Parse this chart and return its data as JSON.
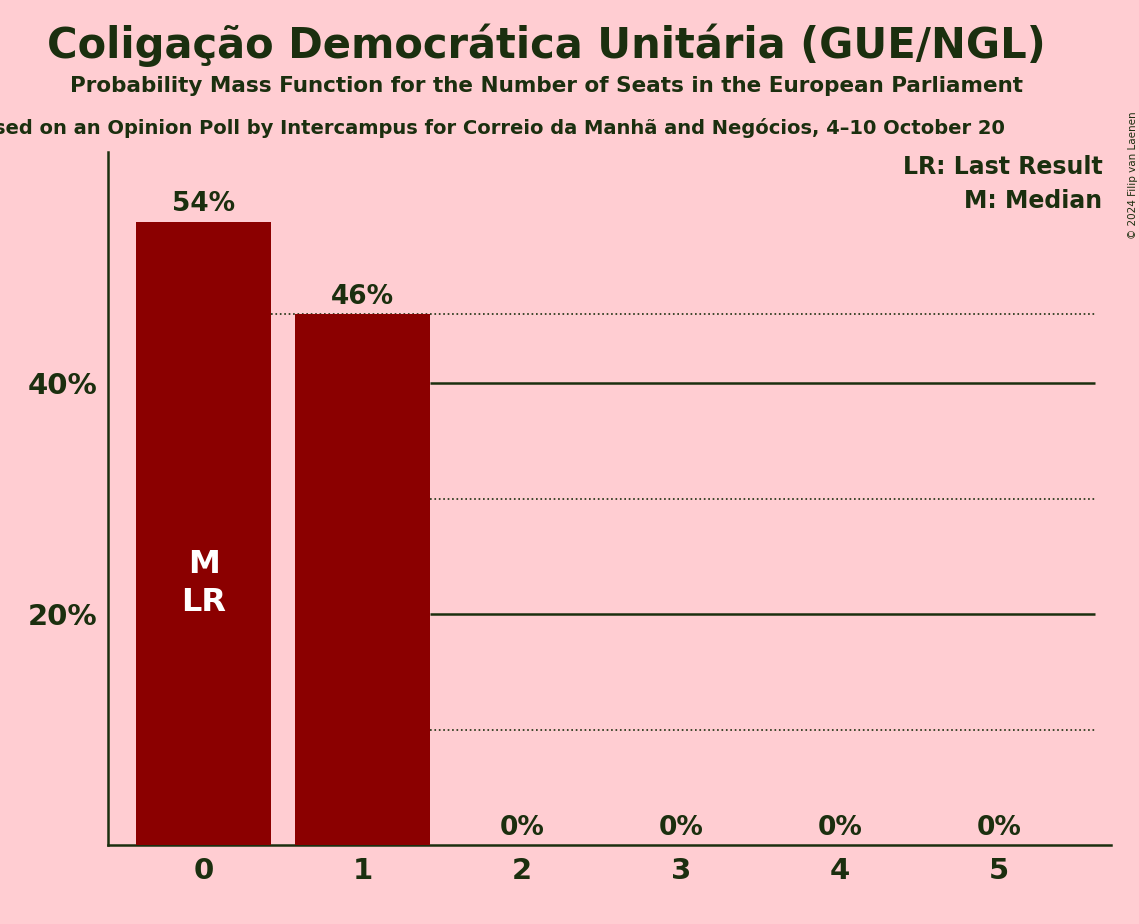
{
  "title": "Coligação Democrática Unitária (GUE/NGL)",
  "subtitle": "Probability Mass Function for the Number of Seats in the European Parliament",
  "source": "sed on an Opinion Poll by Intercampus for Correio da Manhã and Negócios, 4–10 October 20",
  "copyright": "© 2024 Filip van Laenen",
  "categories": [
    0,
    1,
    2,
    3,
    4,
    5
  ],
  "values": [
    0.54,
    0.46,
    0.0,
    0.0,
    0.0,
    0.0
  ],
  "bar_color": "#8B0000",
  "background_color": "#FFCDD2",
  "title_color": "#1B2F0F",
  "bar_label_color": "#FFFFFF",
  "ylim": [
    0,
    0.6
  ],
  "solid_gridlines": [
    0.2,
    0.4
  ],
  "dotted_gridlines": [
    0.1,
    0.3,
    0.46
  ],
  "legend_lr": "LR: Last Result",
  "legend_m": "M: Median",
  "bar_width": 0.85
}
